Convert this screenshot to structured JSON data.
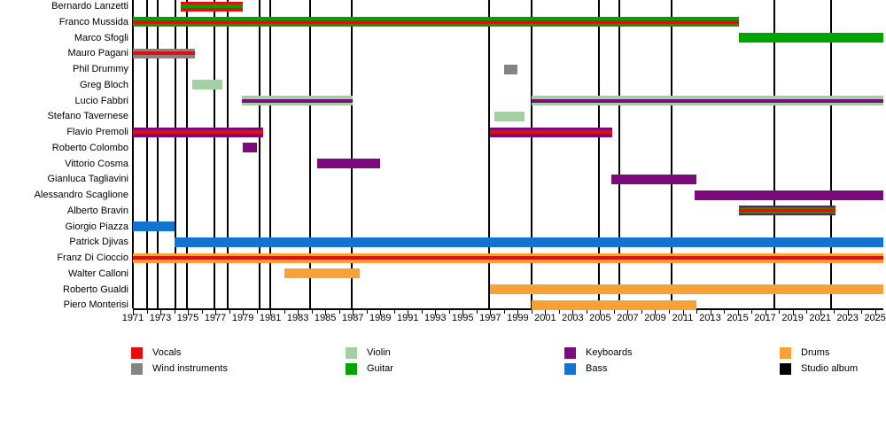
{
  "chart_data": {
    "type": "bar",
    "subtype": "band-members-gantt-timeline",
    "x_axis": {
      "min": 1971,
      "max": 2025.6,
      "tick_every_years": 1,
      "labeled_years": [
        1971,
        1973,
        1975,
        1977,
        1979,
        1981,
        1983,
        1985,
        1987,
        1989,
        1991,
        1993,
        1995,
        1997,
        1999,
        2001,
        2003,
        2005,
        2007,
        2009,
        2011,
        2013,
        2015,
        2017,
        2019,
        2021,
        2023,
        2025
      ]
    },
    "colors": {
      "vocals": "#e60d0d",
      "wind": "#848484",
      "violin": "#a3cfa3",
      "guitar": "#00a400",
      "keyboards": "#7b0a7b",
      "bass": "#1373d1",
      "drums": "#f9a137",
      "album": "#000000"
    },
    "legend": [
      [
        {
          "key": "vocals",
          "label": "Vocals"
        },
        {
          "key": "violin",
          "label": "Violin"
        },
        {
          "key": "keyboards",
          "label": "Keyboards"
        },
        {
          "key": "drums",
          "label": "Drums"
        }
      ],
      [
        {
          "key": "wind",
          "label": "Wind instruments"
        },
        {
          "key": "guitar",
          "label": "Guitar"
        },
        {
          "key": "bass",
          "label": "Bass"
        },
        {
          "key": "album",
          "label": "Studio album"
        }
      ]
    ],
    "members": [
      {
        "name": "Bernardo Lanzetti",
        "bars": [
          {
            "start": 1974.5,
            "end": 1979.0,
            "layers": [
              "vocals",
              "guitar"
            ]
          }
        ]
      },
      {
        "name": "Franco Mussida",
        "bars": [
          {
            "start": 1971.0,
            "end": 2015.1,
            "layers": [
              "guitar",
              "vocals"
            ]
          }
        ]
      },
      {
        "name": "Marco Sfogli",
        "bars": [
          {
            "start": 2015.1,
            "end": 2025.6,
            "layers": [
              "guitar"
            ]
          }
        ]
      },
      {
        "name": "Mauro Pagani",
        "bars": [
          {
            "start": 1971.0,
            "end": 1975.5,
            "layers": [
              "wind",
              "vocals"
            ]
          }
        ]
      },
      {
        "name": "Phil Drummy",
        "bars": [
          {
            "start": 1998.0,
            "end": 1999.0,
            "layers": [
              "wind"
            ]
          }
        ]
      },
      {
        "name": "Greg Bloch",
        "bars": [
          {
            "start": 1975.3,
            "end": 1977.5,
            "layers": [
              "violin"
            ]
          }
        ]
      },
      {
        "name": "Lucio Fabbri",
        "bars": [
          {
            "start": 1978.9,
            "end": 1987.0,
            "layers": [
              "violin",
              "keyboards"
            ]
          },
          {
            "start": 2000.0,
            "end": 2025.6,
            "layers": [
              "violin",
              "keyboards"
            ]
          }
        ]
      },
      {
        "name": "Stefano Tavernese",
        "bars": [
          {
            "start": 1997.3,
            "end": 1999.5,
            "layers": [
              "violin"
            ]
          }
        ]
      },
      {
        "name": "Flavio Premoli",
        "bars": [
          {
            "start": 1971.0,
            "end": 1980.5,
            "layers": [
              "keyboards",
              "vocals"
            ]
          },
          {
            "start": 1997.0,
            "end": 2005.9,
            "layers": [
              "keyboards",
              "vocals"
            ]
          }
        ]
      },
      {
        "name": "Roberto Colombo",
        "bars": [
          {
            "start": 1979.0,
            "end": 1980.0,
            "layers": [
              "keyboards"
            ]
          }
        ]
      },
      {
        "name": "Vittorio Cosma",
        "bars": [
          {
            "start": 1984.4,
            "end": 1989.0,
            "layers": [
              "keyboards"
            ]
          }
        ]
      },
      {
        "name": "Gianluca Tagliavini",
        "bars": [
          {
            "start": 2005.8,
            "end": 2012.0,
            "layers": [
              "keyboards"
            ]
          }
        ]
      },
      {
        "name": "Alessandro Scaglione",
        "bars": [
          {
            "start": 2011.9,
            "end": 2025.6,
            "layers": [
              "keyboards"
            ]
          }
        ]
      },
      {
        "name": "Alberto Bravin",
        "bars": [
          {
            "start": 2015.1,
            "end": 2022.1,
            "layers": [
              "keyboards",
              "guitar",
              "vocals"
            ]
          }
        ]
      },
      {
        "name": "Giorgio Piazza",
        "bars": [
          {
            "start": 1971.0,
            "end": 1974.0,
            "layers": [
              "bass"
            ]
          }
        ]
      },
      {
        "name": "Patrick Djivas",
        "bars": [
          {
            "start": 1974.0,
            "end": 2025.6,
            "layers": [
              "bass"
            ]
          }
        ]
      },
      {
        "name": "Franz Di Cioccio",
        "bars": [
          {
            "start": 1971.0,
            "end": 2025.6,
            "layers": [
              "drums",
              "vocals"
            ]
          }
        ]
      },
      {
        "name": "Walter Calloni",
        "bars": [
          {
            "start": 1982.0,
            "end": 1987.5,
            "layers": [
              "drums"
            ]
          }
        ]
      },
      {
        "name": "Roberto Gualdi",
        "bars": [
          {
            "start": 1997.0,
            "end": 2025.6,
            "layers": [
              "drums"
            ]
          }
        ]
      },
      {
        "name": "Piero Monterisi",
        "bars": [
          {
            "start": 2000.0,
            "end": 2012.0,
            "layers": [
              "drums"
            ]
          }
        ]
      }
    ],
    "studio_album_years": [
      1972.0,
      1972.8,
      1974.1,
      1974.9,
      1976.9,
      1977.9,
      1980.2,
      1981.0,
      1983.9,
      1986.9,
      1996.9,
      2000.0,
      2004.9,
      2006.4,
      2010.2,
      2017.7,
      2021.8
    ]
  }
}
